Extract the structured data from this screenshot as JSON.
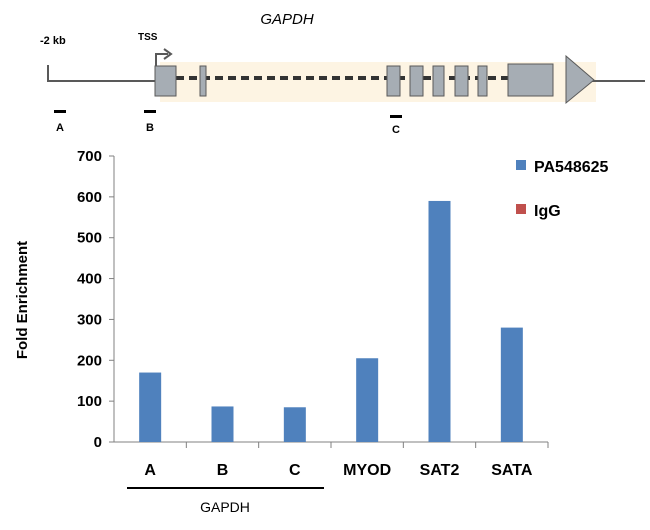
{
  "gene_diagram": {
    "gene_name": "GAPDH",
    "upstream_label": "-2 kb",
    "tss_label": "TSS",
    "primer_labels": [
      "A",
      "B",
      "C"
    ]
  },
  "colors": {
    "series_primary": "#4F81BD",
    "series_secondary": "#C0504D",
    "exon_fill": "#A6ADB4",
    "gene_body_bg": "#FDF4E3",
    "line": "#595959"
  },
  "chart_data": {
    "type": "bar",
    "categories": [
      "A",
      "B",
      "C",
      "MYOD",
      "SAT2",
      "SATA"
    ],
    "series": [
      {
        "name": "PA548625",
        "values": [
          170,
          87,
          85,
          205,
          590,
          280
        ]
      },
      {
        "name": "IgG",
        "values": [
          0,
          0,
          0,
          0,
          0,
          0
        ]
      }
    ],
    "ylabel": "Fold Enrichment",
    "ylim": [
      0,
      700
    ],
    "yticks": [
      "0",
      "100",
      "200",
      "300",
      "400",
      "500",
      "600",
      "700"
    ],
    "group_label": "GAPDH",
    "grid": false,
    "legend_position": "top-right"
  }
}
